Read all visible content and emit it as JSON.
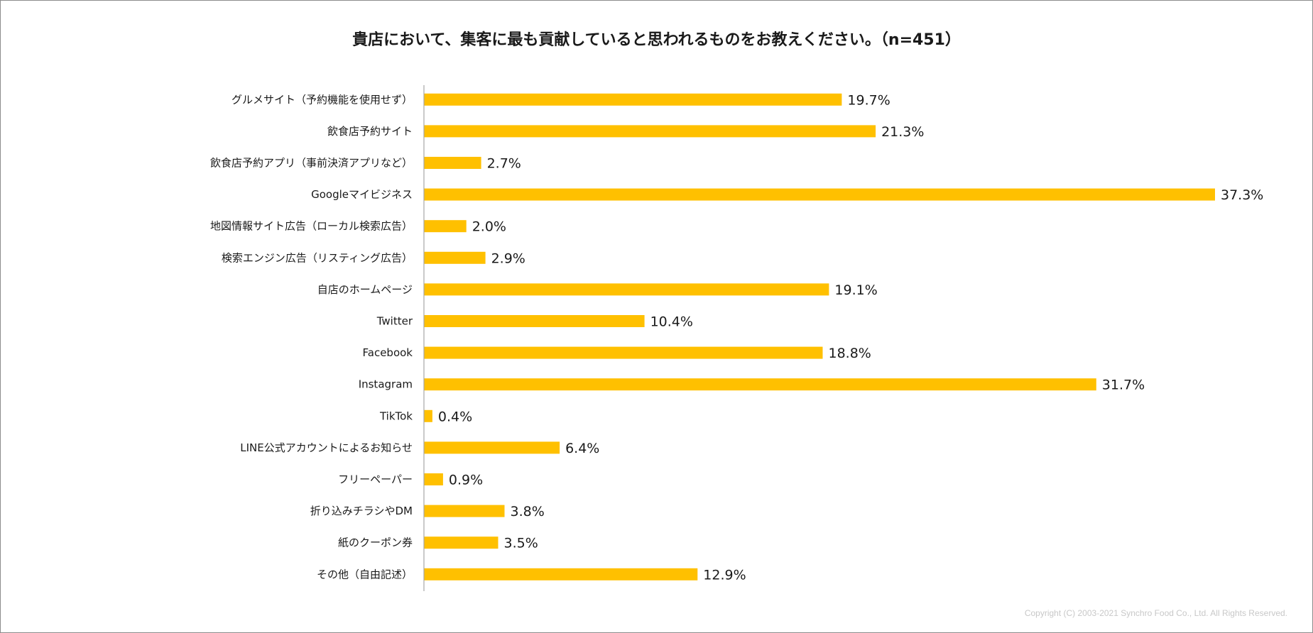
{
  "chart_data": {
    "type": "bar",
    "orientation": "horizontal",
    "title": "貴店において、集客に最も貢献していると思われるものをお教えください。（n=451）",
    "categories": [
      "グルメサイト（予約機能を使用せず）",
      "飲食店予約サイト",
      "飲食店予約アプリ（事前決済アプリなど）",
      "Googleマイビジネス",
      "地図情報サイト広告（ローカル検索広告）",
      "検索エンジン広告（リスティング広告）",
      "自店のホームページ",
      "Twitter",
      "Facebook",
      "Instagram",
      "TikTok",
      "LINE公式アカウントによるお知らせ",
      "フリーペーパー",
      "折り込みチラシやDM",
      "紙のクーポン券",
      "その他（自由記述）"
    ],
    "values": [
      19.7,
      21.3,
      2.7,
      37.3,
      2.0,
      2.9,
      19.1,
      10.4,
      18.8,
      31.7,
      0.4,
      6.4,
      0.9,
      3.8,
      3.5,
      12.9
    ],
    "labels": [
      "19.7%",
      "21.3%",
      "2.7%",
      "37.3%",
      "2.0%",
      "2.9%",
      "19.1%",
      "10.4%",
      "18.8%",
      "31.7%",
      "0.4%",
      "6.4%",
      "0.9%",
      "3.8%",
      "3.5%",
      "12.9%"
    ],
    "xlabel": "",
    "ylabel": "",
    "xlim": [
      0,
      37.3
    ],
    "grid": false,
    "bar_color": "#FFC000",
    "axis_color": "#A6A6A6"
  },
  "footer": {
    "copyright": "Copyright (C) 2003-2021   Synchro Food Co., Ltd. All Rights Reserved."
  }
}
